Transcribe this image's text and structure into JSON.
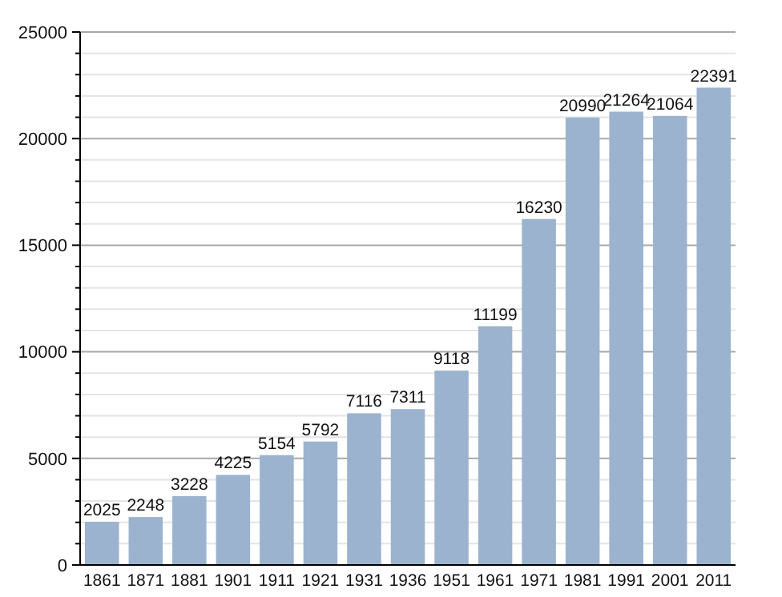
{
  "chart_data": {
    "type": "bar",
    "categories": [
      "1861",
      "1871",
      "1881",
      "1901",
      "1911",
      "1921",
      "1931",
      "1936",
      "1951",
      "1961",
      "1971",
      "1981",
      "1991",
      "2001",
      "2011"
    ],
    "values": [
      2025,
      2248,
      3228,
      4225,
      5154,
      5792,
      7116,
      7311,
      9118,
      11199,
      16230,
      20990,
      21264,
      21064,
      22391
    ],
    "color": "#9bb3cf",
    "ylim": [
      0,
      25000
    ],
    "yticks": [
      0,
      {
        "value": 1000,
        "label": null
      },
      {
        "value": 2000,
        "label": null
      },
      {
        "value": 3000,
        "label": null
      },
      {
        "value": 4000,
        "label": null
      },
      5000,
      {
        "value": 6000,
        "label": null
      },
      {
        "value": 7000,
        "label": null
      },
      {
        "value": 8000,
        "label": null
      },
      {
        "value": 9000,
        "label": null
      },
      10000,
      {
        "value": 11000,
        "label": null
      },
      {
        "value": 12000,
        "label": null
      },
      {
        "value": 13000,
        "label": null
      },
      {
        "value": 14000,
        "label": null
      },
      15000,
      {
        "value": 16000,
        "label": null
      },
      {
        "value": 17000,
        "label": null
      },
      {
        "value": 18000,
        "label": null
      },
      {
        "value": 19000,
        "label": null
      },
      20000,
      {
        "value": 21000,
        "label": null
      },
      {
        "value": 22000,
        "label": null
      },
      {
        "value": 23000,
        "label": null
      },
      {
        "value": 24000,
        "label": null
      },
      25000
    ],
    "grid": "y",
    "data_labels": true
  }
}
